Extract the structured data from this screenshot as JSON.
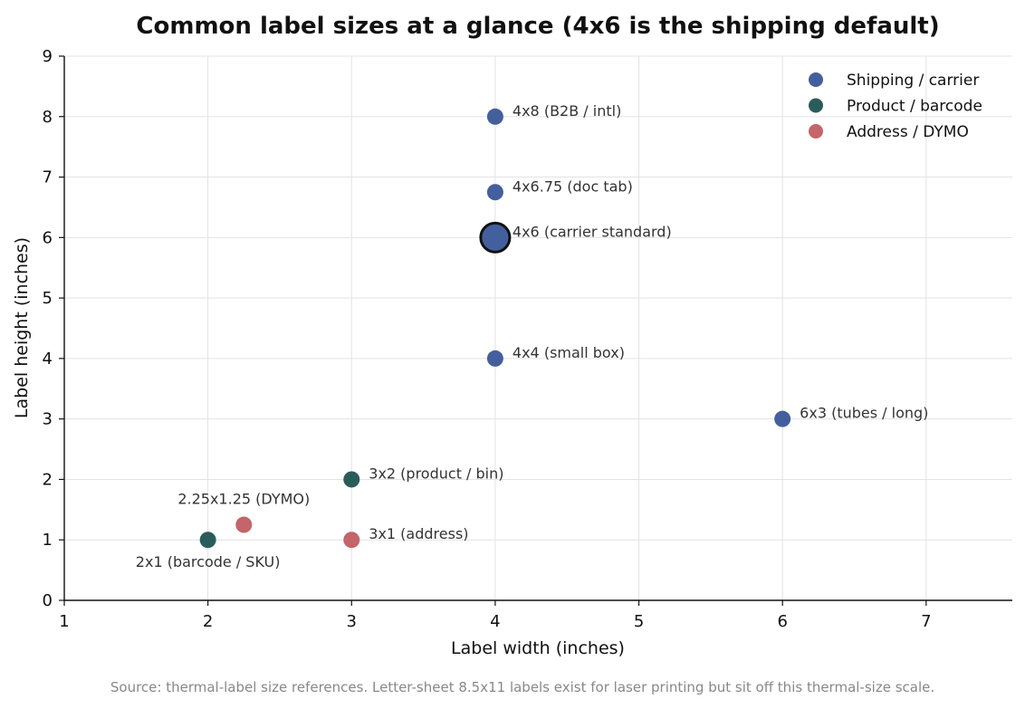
{
  "chart_data": {
    "type": "scatter",
    "title": "Common label sizes at a glance (4x6 is the shipping default)",
    "xlabel": "Label width (inches)",
    "ylabel": "Label height (inches)",
    "xlim": [
      1,
      7.6
    ],
    "ylim": [
      0,
      9
    ],
    "xticks": [
      "1",
      "2",
      "3",
      "4",
      "5",
      "6",
      "7"
    ],
    "yticks": [
      "0",
      "1",
      "2",
      "3",
      "4",
      "5",
      "6",
      "7",
      "8",
      "9"
    ],
    "grid": true,
    "legend_position": "top-right",
    "series": [
      {
        "name": "Shipping / carrier",
        "color": "#445f9e",
        "points": [
          {
            "x": 4,
            "y": 8,
            "label": "4x8 (B2B / intl)"
          },
          {
            "x": 4,
            "y": 6.75,
            "label": "4x6.75 (doc tab)"
          },
          {
            "x": 4,
            "y": 6,
            "label": "4x6 (carrier standard)",
            "highlight": true
          },
          {
            "x": 4,
            "y": 4,
            "label": "4x4 (small box)"
          },
          {
            "x": 6,
            "y": 3,
            "label": "6x3 (tubes / long)"
          }
        ]
      },
      {
        "name": "Product / barcode",
        "color": "#2a5d5a",
        "points": [
          {
            "x": 3,
            "y": 2,
            "label": "3x2 (product / bin)"
          },
          {
            "x": 2,
            "y": 1,
            "label": "2x1 (barcode / SKU)"
          }
        ]
      },
      {
        "name": "Address / DYMO",
        "color": "#c4646b",
        "points": [
          {
            "x": 2.25,
            "y": 1.25,
            "label": "2.25x1.25 (DYMO)"
          },
          {
            "x": 3,
            "y": 1,
            "label": "3x1 (address)"
          }
        ]
      }
    ],
    "footnote": "Source: thermal-label size references. Letter-sheet 8.5x11 labels exist for laser printing but sit off this thermal-size scale."
  }
}
